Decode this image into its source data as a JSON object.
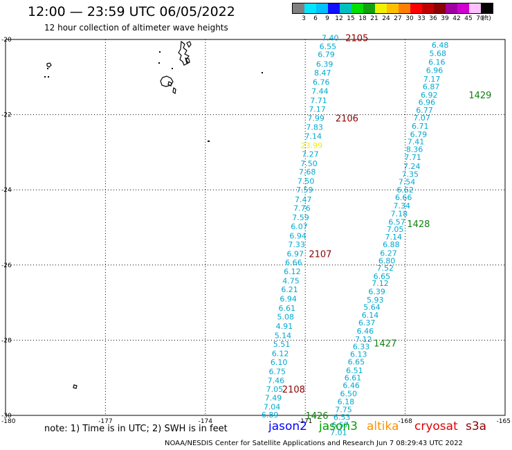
{
  "header": {
    "title": "12:00 — 23:59 UTC 06/05/2022",
    "subtitle": "12 hour collection of altimeter wave heights"
  },
  "legend": {
    "colors": [
      "#808080",
      "#00e5ff",
      "#00c0ff",
      "#1010ff",
      "#00bfbf",
      "#00e000",
      "#10a010",
      "#f0f000",
      "#ffbf00",
      "#ff8000",
      "#ff0000",
      "#c00000",
      "#8b0000",
      "#a000a0",
      "#d000d0",
      "#ffc0ff",
      "#000000"
    ],
    "labels": [
      "3",
      "6",
      "9",
      "12",
      "15",
      "18",
      "21",
      "24",
      "27",
      "30",
      "33",
      "36",
      "39",
      "42",
      "45",
      "70",
      "(ft)"
    ]
  },
  "map": {
    "lat_labels": [
      "-20",
      "-22",
      "-24",
      "-26",
      "-28",
      "-30"
    ],
    "lon_labels": [
      "-180",
      "-177",
      "-174",
      "-171",
      "-168",
      "-165"
    ],
    "wave_color": "#00a8d0",
    "highlight_color": "#f0f000",
    "track1": [
      {
        "v": "7.40",
        "lon": -170.25,
        "lat": -19.95
      },
      {
        "v": "6.55",
        "lon": -170.32,
        "lat": -20.18
      },
      {
        "v": "6.79",
        "lon": -170.37,
        "lat": -20.4
      },
      {
        "v": "6.39",
        "lon": -170.42,
        "lat": -20.65
      },
      {
        "v": "8.47",
        "lon": -170.48,
        "lat": -20.88
      },
      {
        "v": "6.76",
        "lon": -170.52,
        "lat": -21.13
      },
      {
        "v": "7.44",
        "lon": -170.56,
        "lat": -21.37
      },
      {
        "v": "7.71",
        "lon": -170.6,
        "lat": -21.62
      },
      {
        "v": "7.17",
        "lon": -170.64,
        "lat": -21.85
      },
      {
        "v": "7.99",
        "lon": -170.68,
        "lat": -22.09
      },
      {
        "v": "7.83",
        "lon": -170.72,
        "lat": -22.33
      },
      {
        "v": "7.14",
        "lon": -170.76,
        "lat": -22.57
      },
      {
        "v": "23.99",
        "lon": -170.81,
        "lat": -22.82,
        "hl": true
      },
      {
        "v": "7.27",
        "lon": -170.85,
        "lat": -23.05
      },
      {
        "v": "7.50",
        "lon": -170.89,
        "lat": -23.3
      },
      {
        "v": "7.68",
        "lon": -170.94,
        "lat": -23.52
      },
      {
        "v": "7.50",
        "lon": -170.98,
        "lat": -23.77
      },
      {
        "v": "7.59",
        "lon": -171.02,
        "lat": -24.0
      },
      {
        "v": "7.47",
        "lon": -171.06,
        "lat": -24.25
      },
      {
        "v": "7.76",
        "lon": -171.1,
        "lat": -24.48
      },
      {
        "v": "7.59",
        "lon": -171.14,
        "lat": -24.73
      },
      {
        "v": "6.07",
        "lon": -171.18,
        "lat": -24.97
      },
      {
        "v": "6.94",
        "lon": -171.22,
        "lat": -25.22
      },
      {
        "v": "7.33",
        "lon": -171.26,
        "lat": -25.45
      },
      {
        "v": "6.97",
        "lon": -171.3,
        "lat": -25.7
      },
      {
        "v": "6.66",
        "lon": -171.35,
        "lat": -25.93
      },
      {
        "v": "6.12",
        "lon": -171.39,
        "lat": -26.17
      },
      {
        "v": "4.75",
        "lon": -171.43,
        "lat": -26.42
      },
      {
        "v": "6.21",
        "lon": -171.47,
        "lat": -26.65
      },
      {
        "v": "6.94",
        "lon": -171.51,
        "lat": -26.9
      },
      {
        "v": "6.61",
        "lon": -171.55,
        "lat": -27.15
      },
      {
        "v": "5.08",
        "lon": -171.59,
        "lat": -27.38
      },
      {
        "v": "4.91",
        "lon": -171.63,
        "lat": -27.62
      },
      {
        "v": "5.14",
        "lon": -171.67,
        "lat": -27.87
      },
      {
        "v": "5.51",
        "lon": -171.71,
        "lat": -28.1
      },
      {
        "v": "6.12",
        "lon": -171.75,
        "lat": -28.35
      },
      {
        "v": "6.10",
        "lon": -171.79,
        "lat": -28.58
      },
      {
        "v": "6.75",
        "lon": -171.84,
        "lat": -28.83
      },
      {
        "v": "7.46",
        "lon": -171.88,
        "lat": -29.07
      },
      {
        "v": "7.05",
        "lon": -171.92,
        "lat": -29.3
      },
      {
        "v": "7.49",
        "lon": -171.96,
        "lat": -29.53
      },
      {
        "v": "7.04",
        "lon": -172.0,
        "lat": -29.77
      },
      {
        "v": "6.89",
        "lon": -172.06,
        "lat": -29.98
      }
    ],
    "track2": [
      {
        "v": "6.48",
        "lon": -166.95,
        "lat": -20.15
      },
      {
        "v": "5.68",
        "lon": -167.02,
        "lat": -20.37
      },
      {
        "v": "6.16",
        "lon": -167.05,
        "lat": -20.6
      },
      {
        "v": "6.96",
        "lon": -167.12,
        "lat": -20.82
      },
      {
        "v": "7.17",
        "lon": -167.2,
        "lat": -21.05
      },
      {
        "v": "6.87",
        "lon": -167.22,
        "lat": -21.25
      },
      {
        "v": "6.92",
        "lon": -167.28,
        "lat": -21.47
      },
      {
        "v": "6.96",
        "lon": -167.35,
        "lat": -21.67
      },
      {
        "v": "6.77",
        "lon": -167.42,
        "lat": -21.88
      },
      {
        "v": "7.07",
        "lon": -167.5,
        "lat": -22.08
      },
      {
        "v": "6.71",
        "lon": -167.55,
        "lat": -22.3
      },
      {
        "v": "6.79",
        "lon": -167.6,
        "lat": -22.52
      },
      {
        "v": "7.41",
        "lon": -167.68,
        "lat": -22.72
      },
      {
        "v": "8.36",
        "lon": -167.72,
        "lat": -22.92
      },
      {
        "v": "7.71",
        "lon": -167.77,
        "lat": -23.13
      },
      {
        "v": "7.24",
        "lon": -167.8,
        "lat": -23.37
      },
      {
        "v": "7.35",
        "lon": -167.85,
        "lat": -23.58
      },
      {
        "v": "7.54",
        "lon": -167.95,
        "lat": -23.78
      },
      {
        "v": "6.62",
        "lon": -168.0,
        "lat": -24.0
      },
      {
        "v": "6.66",
        "lon": -168.05,
        "lat": -24.2
      },
      {
        "v": "7.34",
        "lon": -168.1,
        "lat": -24.42
      },
      {
        "v": "7.18",
        "lon": -168.18,
        "lat": -24.63
      },
      {
        "v": "6.57",
        "lon": -168.25,
        "lat": -24.85
      },
      {
        "v": "7.05",
        "lon": -168.3,
        "lat": -25.05
      },
      {
        "v": "7.14",
        "lon": -168.35,
        "lat": -25.25
      },
      {
        "v": "6.88",
        "lon": -168.42,
        "lat": -25.45
      },
      {
        "v": "6.27",
        "lon": -168.5,
        "lat": -25.68
      },
      {
        "v": "6.80",
        "lon": -168.55,
        "lat": -25.88
      },
      {
        "v": "7.52",
        "lon": -168.6,
        "lat": -26.08
      },
      {
        "v": "6.65",
        "lon": -168.7,
        "lat": -26.3
      },
      {
        "v": "7.12",
        "lon": -168.75,
        "lat": -26.48
      },
      {
        "v": "6.39",
        "lon": -168.85,
        "lat": -26.7
      },
      {
        "v": "5.93",
        "lon": -168.9,
        "lat": -26.92
      },
      {
        "v": "5.64",
        "lon": -169.0,
        "lat": -27.12
      },
      {
        "v": "6.14",
        "lon": -169.05,
        "lat": -27.33
      },
      {
        "v": "6.37",
        "lon": -169.15,
        "lat": -27.53
      },
      {
        "v": "6.46",
        "lon": -169.2,
        "lat": -27.75
      },
      {
        "v": "7.12",
        "lon": -169.25,
        "lat": -27.97
      },
      {
        "v": "6.33",
        "lon": -169.32,
        "lat": -28.17
      },
      {
        "v": "6.13",
        "lon": -169.4,
        "lat": -28.37
      },
      {
        "v": "6.65",
        "lon": -169.47,
        "lat": -28.57
      },
      {
        "v": "6.51",
        "lon": -169.52,
        "lat": -28.8
      },
      {
        "v": "6.61",
        "lon": -169.57,
        "lat": -29.0
      },
      {
        "v": "6.46",
        "lon": -169.62,
        "lat": -29.2
      },
      {
        "v": "6.50",
        "lon": -169.7,
        "lat": -29.42
      },
      {
        "v": "6.18",
        "lon": -169.78,
        "lat": -29.63
      },
      {
        "v": "7.75",
        "lon": -169.85,
        "lat": -29.84
      },
      {
        "v": "6.53",
        "lon": -169.9,
        "lat": -30.05
      },
      {
        "v": "6.57",
        "lon": -169.95,
        "lat": -30.25
      },
      {
        "v": "7.01",
        "lon": -170.0,
        "lat": -30.45
      }
    ],
    "times": [
      {
        "t": "2105",
        "lon": -169.45,
        "lat": -19.95,
        "color": "#8b0000"
      },
      {
        "t": "2106",
        "lon": -169.75,
        "lat": -22.09,
        "color": "#8b0000"
      },
      {
        "t": "2107",
        "lon": -170.55,
        "lat": -25.7,
        "color": "#8b0000"
      },
      {
        "t": "2108",
        "lon": -171.35,
        "lat": -29.3,
        "color": "#8b0000"
      },
      {
        "t": "1429",
        "lon": -165.75,
        "lat": -21.47,
        "color": "#108010"
      },
      {
        "t": "1428",
        "lon": -167.6,
        "lat": -24.9,
        "color": "#108010"
      },
      {
        "t": "1427",
        "lon": -168.6,
        "lat": -28.08,
        "color": "#108010"
      },
      {
        "t": "1426",
        "lon": -170.65,
        "lat": -30.0,
        "color": "#108010"
      }
    ]
  },
  "footer": {
    "note": "note:  1) Time is in UTC;  2) SWH is in feet",
    "satellites": [
      {
        "name": "jason2",
        "color": "#0000ff"
      },
      {
        "name": "jason3",
        "color": "#00a000"
      },
      {
        "name": "altika",
        "color": "#ff9000"
      },
      {
        "name": "cryosat",
        "color": "#e00000"
      },
      {
        "name": "s3a",
        "color": "#8b0000"
      }
    ],
    "credit": "NOAA/NESDIS Center for Satellite Applications and Research    Jun  7 08:29:43 UTC 2022"
  }
}
